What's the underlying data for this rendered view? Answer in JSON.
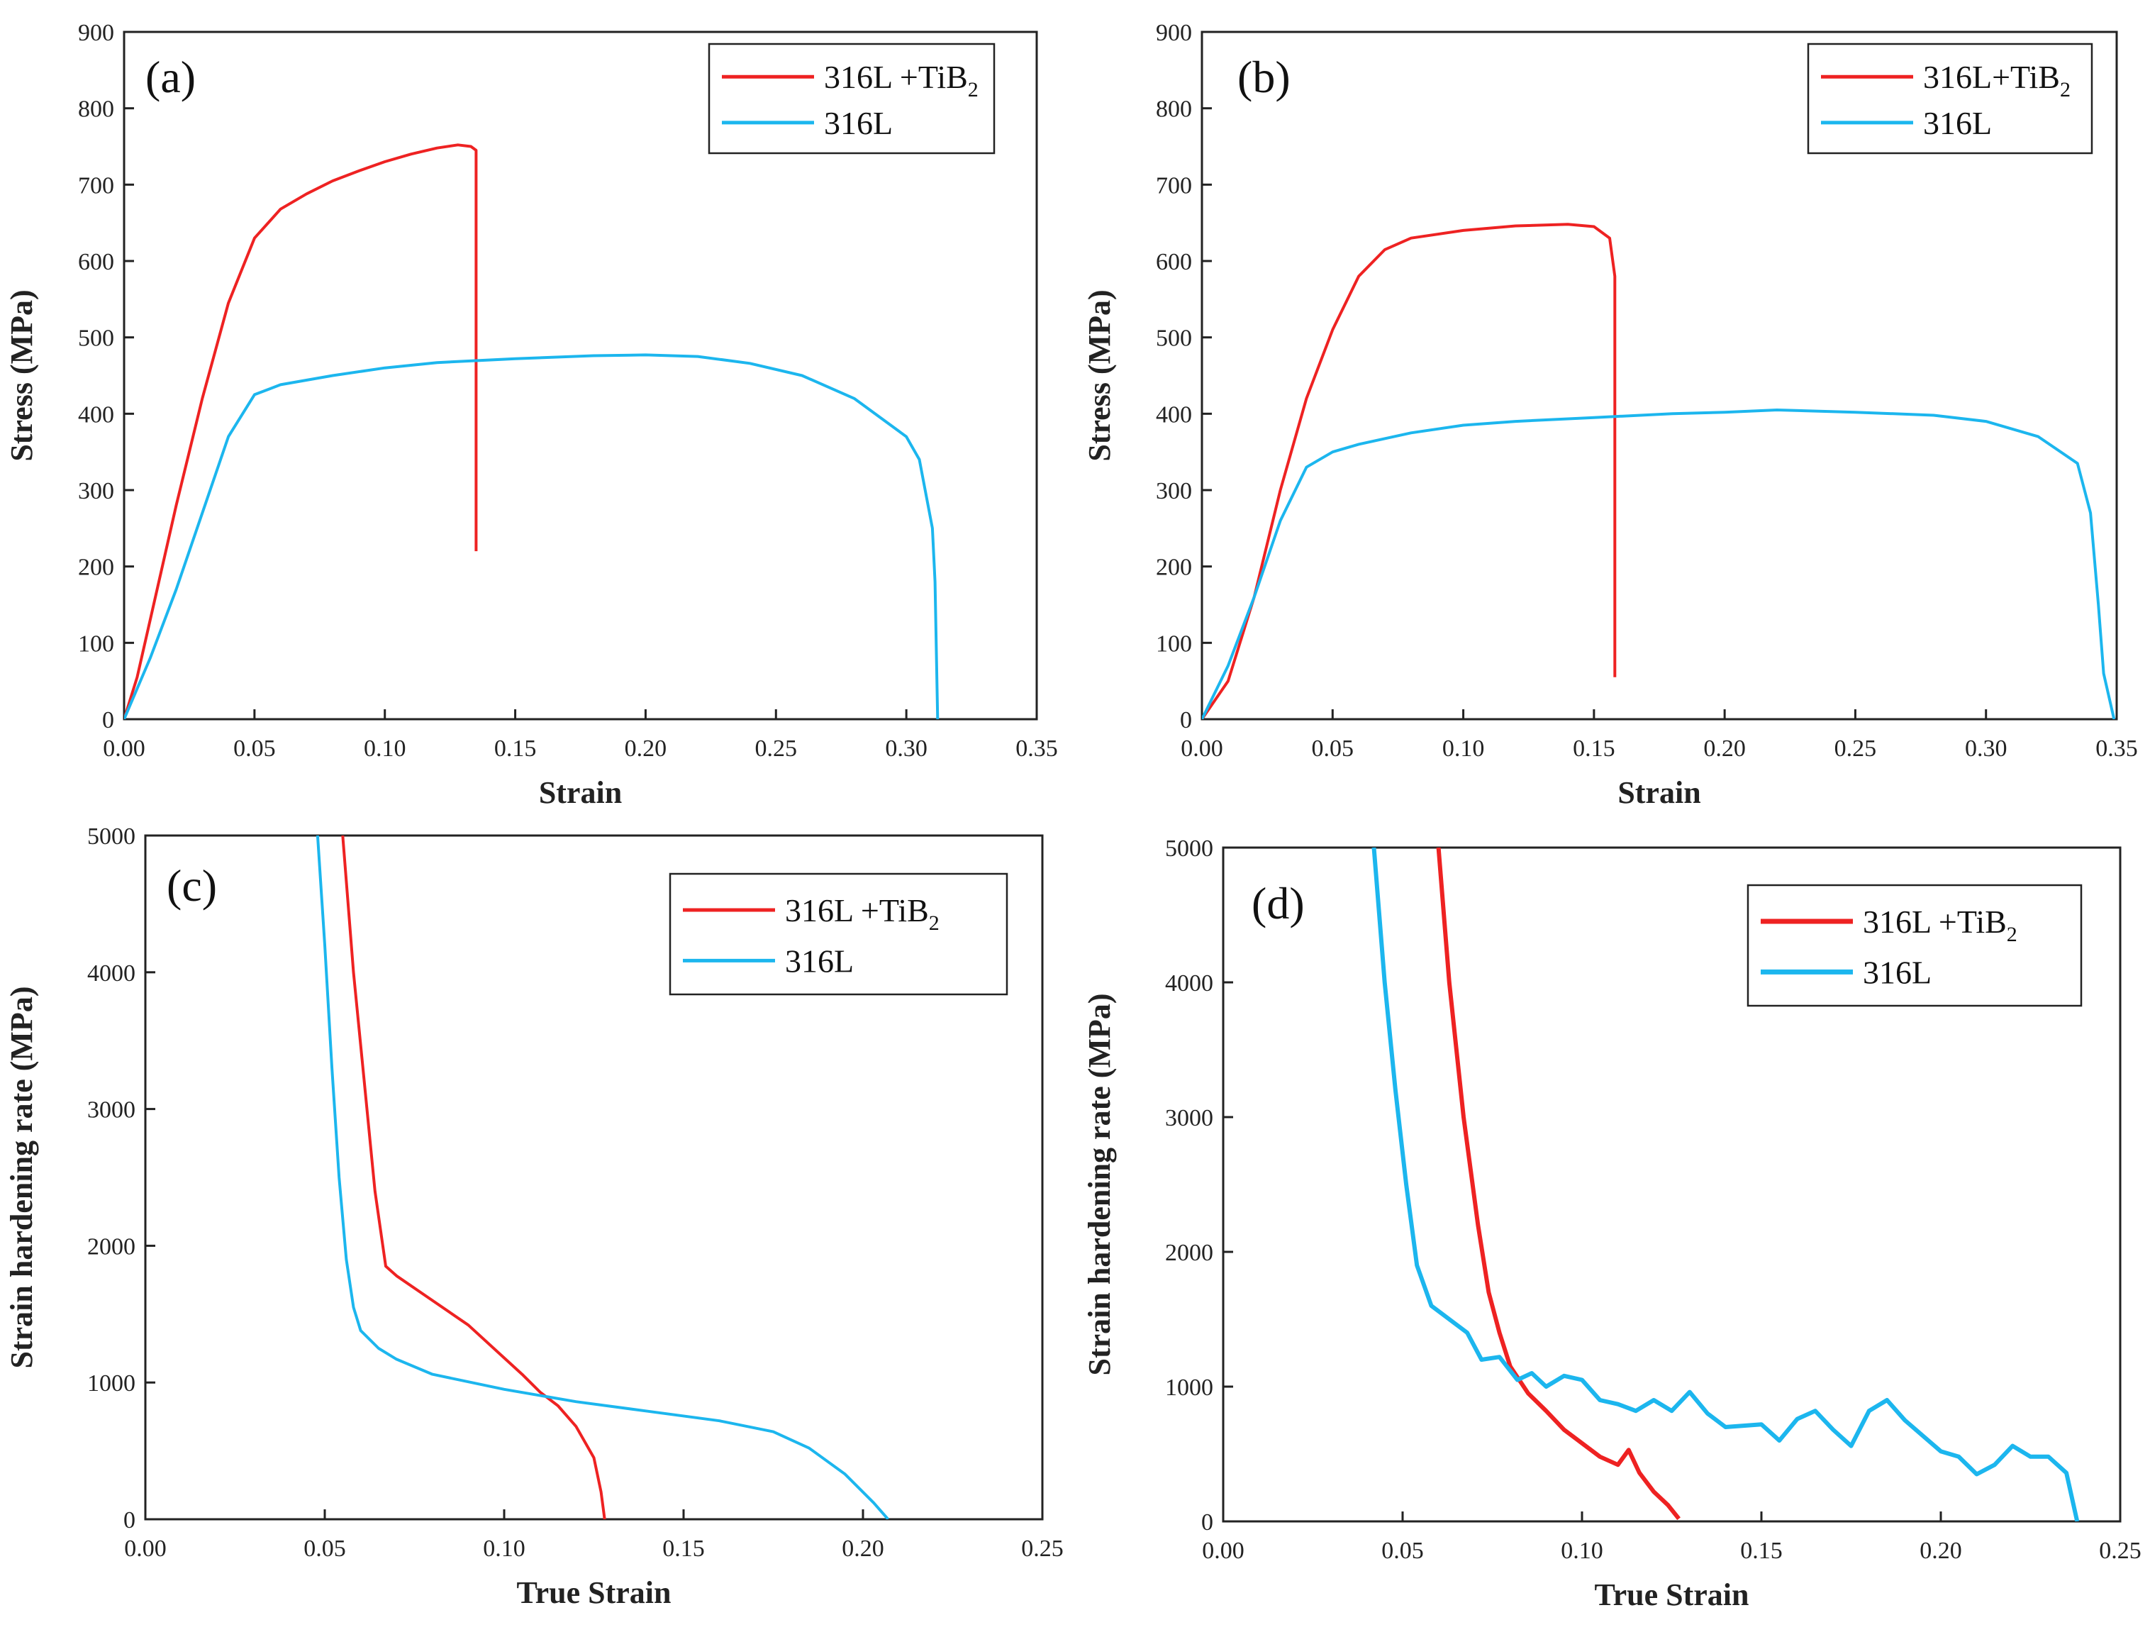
{
  "colors": {
    "red": "#ee2222",
    "blue": "#1cb6ee",
    "axis": "#222222"
  },
  "chart_data": [
    {
      "panel_label": "(a)",
      "type": "line",
      "xlabel": "Strain",
      "ylabel": "Stress (MPa)",
      "xlim": [
        0,
        0.35
      ],
      "ylim": [
        0,
        900
      ],
      "xticks": [
        "0.00",
        "0.05",
        "0.10",
        "0.15",
        "0.20",
        "0.25",
        "0.30",
        "0.35"
      ],
      "yticks": [
        "0",
        "100",
        "200",
        "300",
        "400",
        "500",
        "600",
        "700",
        "800",
        "900"
      ],
      "legend_position": "top-right",
      "series": [
        {
          "name": "316L +TiB",
          "name_sub": "2",
          "color": "#ee2222",
          "points": [
            [
              0,
              0
            ],
            [
              0.005,
              55
            ],
            [
              0.01,
              130
            ],
            [
              0.02,
              280
            ],
            [
              0.03,
              420
            ],
            [
              0.04,
              545
            ],
            [
              0.05,
              630
            ],
            [
              0.06,
              668
            ],
            [
              0.07,
              688
            ],
            [
              0.08,
              705
            ],
            [
              0.09,
              718
            ],
            [
              0.1,
              730
            ],
            [
              0.11,
              740
            ],
            [
              0.12,
              748
            ],
            [
              0.128,
              752
            ],
            [
              0.133,
              750
            ],
            [
              0.135,
              745
            ],
            [
              0.135,
              220
            ]
          ]
        },
        {
          "name": "316L",
          "name_sub": "",
          "color": "#1cb6ee",
          "points": [
            [
              0,
              0
            ],
            [
              0.01,
              80
            ],
            [
              0.02,
              170
            ],
            [
              0.03,
              270
            ],
            [
              0.04,
              370
            ],
            [
              0.05,
              425
            ],
            [
              0.06,
              438
            ],
            [
              0.08,
              450
            ],
            [
              0.1,
              460
            ],
            [
              0.12,
              467
            ],
            [
              0.15,
              472
            ],
            [
              0.18,
              476
            ],
            [
              0.2,
              477
            ],
            [
              0.22,
              475
            ],
            [
              0.24,
              466
            ],
            [
              0.26,
              450
            ],
            [
              0.28,
              420
            ],
            [
              0.3,
              370
            ],
            [
              0.305,
              340
            ],
            [
              0.31,
              250
            ],
            [
              0.311,
              180
            ],
            [
              0.312,
              0
            ]
          ]
        }
      ]
    },
    {
      "panel_label": "(b)",
      "type": "line",
      "xlabel": "Strain",
      "ylabel": "Stress (MPa)",
      "xlim": [
        0,
        0.35
      ],
      "ylim": [
        0,
        900
      ],
      "xticks": [
        "0.00",
        "0.05",
        "0.10",
        "0.15",
        "0.20",
        "0.25",
        "0.30",
        "0.35"
      ],
      "yticks": [
        "0",
        "100",
        "200",
        "300",
        "400",
        "500",
        "600",
        "700",
        "800",
        "900"
      ],
      "legend_position": "top-right",
      "series": [
        {
          "name": "316L+TiB",
          "name_sub": "2",
          "color": "#ee2222",
          "points": [
            [
              0,
              0
            ],
            [
              0.01,
              50
            ],
            [
              0.02,
              160
            ],
            [
              0.03,
              300
            ],
            [
              0.04,
              420
            ],
            [
              0.05,
              510
            ],
            [
              0.06,
              580
            ],
            [
              0.07,
              615
            ],
            [
              0.08,
              630
            ],
            [
              0.1,
              640
            ],
            [
              0.12,
              646
            ],
            [
              0.14,
              648
            ],
            [
              0.15,
              645
            ],
            [
              0.156,
              630
            ],
            [
              0.158,
              580
            ],
            [
              0.158,
              55
            ]
          ]
        },
        {
          "name": "316L",
          "name_sub": "",
          "color": "#1cb6ee",
          "points": [
            [
              0,
              0
            ],
            [
              0.01,
              70
            ],
            [
              0.02,
              160
            ],
            [
              0.03,
              260
            ],
            [
              0.04,
              330
            ],
            [
              0.05,
              350
            ],
            [
              0.06,
              360
            ],
            [
              0.08,
              375
            ],
            [
              0.1,
              385
            ],
            [
              0.12,
              390
            ],
            [
              0.15,
              395
            ],
            [
              0.18,
              400
            ],
            [
              0.2,
              402
            ],
            [
              0.22,
              405
            ],
            [
              0.25,
              402
            ],
            [
              0.28,
              398
            ],
            [
              0.3,
              390
            ],
            [
              0.32,
              370
            ],
            [
              0.335,
              335
            ],
            [
              0.34,
              270
            ],
            [
              0.343,
              150
            ],
            [
              0.345,
              60
            ],
            [
              0.349,
              0
            ]
          ]
        }
      ]
    },
    {
      "panel_label": "(c)",
      "type": "line",
      "xlabel": "True Strain",
      "ylabel": "Strain hardening rate (MPa)",
      "xlim": [
        0,
        0.25
      ],
      "ylim": [
        0,
        5000
      ],
      "xticks": [
        "0.00",
        "0.05",
        "0.10",
        "0.15",
        "0.20",
        "0.25"
      ],
      "yticks": [
        "0",
        "1000",
        "2000",
        "3000",
        "4000",
        "5000"
      ],
      "legend_position": "top-right",
      "series": [
        {
          "name": "316L +TiB",
          "name_sub": "2",
          "color": "#ee2222",
          "points": [
            [
              0.055,
              5000
            ],
            [
              0.058,
              4000
            ],
            [
              0.061,
              3200
            ],
            [
              0.064,
              2400
            ],
            [
              0.067,
              1850
            ],
            [
              0.07,
              1780
            ],
            [
              0.08,
              1600
            ],
            [
              0.09,
              1420
            ],
            [
              0.1,
              1180
            ],
            [
              0.105,
              1060
            ],
            [
              0.11,
              930
            ],
            [
              0.115,
              830
            ],
            [
              0.12,
              680
            ],
            [
              0.125,
              450
            ],
            [
              0.127,
              200
            ],
            [
              0.128,
              0
            ]
          ]
        },
        {
          "name": "316L",
          "name_sub": "",
          "color": "#1cb6ee",
          "points": [
            [
              0.048,
              5000
            ],
            [
              0.05,
              4200
            ],
            [
              0.052,
              3300
            ],
            [
              0.054,
              2500
            ],
            [
              0.056,
              1900
            ],
            [
              0.058,
              1550
            ],
            [
              0.06,
              1380
            ],
            [
              0.065,
              1250
            ],
            [
              0.07,
              1170
            ],
            [
              0.08,
              1060
            ],
            [
              0.1,
              950
            ],
            [
              0.12,
              860
            ],
            [
              0.14,
              790
            ],
            [
              0.16,
              720
            ],
            [
              0.175,
              640
            ],
            [
              0.185,
              520
            ],
            [
              0.195,
              330
            ],
            [
              0.203,
              120
            ],
            [
              0.207,
              0
            ]
          ]
        }
      ]
    },
    {
      "panel_label": "(d)",
      "type": "line",
      "xlabel": "True Strain",
      "ylabel": "Strain hardening rate (MPa)",
      "xlim": [
        0,
        0.25
      ],
      "ylim": [
        0,
        5000
      ],
      "xticks": [
        "0.00",
        "0.05",
        "0.10",
        "0.15",
        "0.20",
        "0.25"
      ],
      "yticks": [
        "0",
        "1000",
        "2000",
        "3000",
        "4000",
        "5000"
      ],
      "legend_position": "top-right",
      "series": [
        {
          "name": "316L +TiB",
          "name_sub": "2",
          "color": "#ee2222",
          "points": [
            [
              0.06,
              5000
            ],
            [
              0.063,
              4000
            ],
            [
              0.067,
              3000
            ],
            [
              0.071,
              2200
            ],
            [
              0.074,
              1700
            ],
            [
              0.077,
              1400
            ],
            [
              0.08,
              1150
            ],
            [
              0.085,
              950
            ],
            [
              0.09,
              820
            ],
            [
              0.095,
              680
            ],
            [
              0.1,
              580
            ],
            [
              0.105,
              480
            ],
            [
              0.11,
              420
            ],
            [
              0.113,
              530
            ],
            [
              0.116,
              360
            ],
            [
              0.12,
              220
            ],
            [
              0.124,
              120
            ],
            [
              0.127,
              20
            ]
          ]
        },
        {
          "name": "316L",
          "name_sub": "",
          "color": "#1cb6ee",
          "points": [
            [
              0.042,
              5000
            ],
            [
              0.045,
              4000
            ],
            [
              0.048,
              3200
            ],
            [
              0.051,
              2500
            ],
            [
              0.054,
              1900
            ],
            [
              0.058,
              1600
            ],
            [
              0.063,
              1500
            ],
            [
              0.068,
              1400
            ],
            [
              0.072,
              1200
            ],
            [
              0.077,
              1220
            ],
            [
              0.082,
              1050
            ],
            [
              0.086,
              1100
            ],
            [
              0.09,
              1000
            ],
            [
              0.095,
              1080
            ],
            [
              0.1,
              1050
            ],
            [
              0.105,
              900
            ],
            [
              0.11,
              870
            ],
            [
              0.115,
              820
            ],
            [
              0.12,
              900
            ],
            [
              0.125,
              820
            ],
            [
              0.13,
              960
            ],
            [
              0.135,
              800
            ],
            [
              0.14,
              700
            ],
            [
              0.15,
              720
            ],
            [
              0.155,
              600
            ],
            [
              0.16,
              760
            ],
            [
              0.165,
              820
            ],
            [
              0.17,
              680
            ],
            [
              0.175,
              560
            ],
            [
              0.18,
              820
            ],
            [
              0.185,
              900
            ],
            [
              0.19,
              750
            ],
            [
              0.2,
              520
            ],
            [
              0.205,
              480
            ],
            [
              0.21,
              350
            ],
            [
              0.215,
              420
            ],
            [
              0.22,
              560
            ],
            [
              0.225,
              480
            ],
            [
              0.23,
              480
            ],
            [
              0.235,
              360
            ],
            [
              0.238,
              0
            ]
          ]
        }
      ]
    }
  ]
}
